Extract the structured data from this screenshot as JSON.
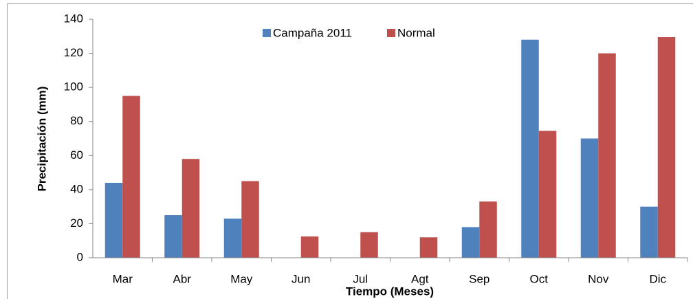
{
  "chart_data": {
    "type": "bar",
    "categories": [
      "Mar",
      "Abr",
      "May",
      "Jun",
      "Jul",
      "Agt",
      "Sep",
      "Oct",
      "Nov",
      "Dic"
    ],
    "series": [
      {
        "name": "Campaña 2011",
        "color": "#4f81bd",
        "values": [
          44,
          25,
          23,
          0,
          0,
          0,
          18,
          128,
          70,
          30
        ]
      },
      {
        "name": "Normal",
        "color": "#c0504d",
        "values": [
          95,
          58,
          45,
          12.5,
          15,
          12,
          33,
          74.5,
          120,
          129.5
        ]
      }
    ],
    "ylabel": "Precipitación (mm)",
    "xlabel": "Tiempo (Meses)",
    "ylim": [
      0,
      140
    ],
    "yticks": [
      0,
      20,
      40,
      60,
      80,
      100,
      120,
      140
    ],
    "grid": false,
    "legend": "top"
  }
}
